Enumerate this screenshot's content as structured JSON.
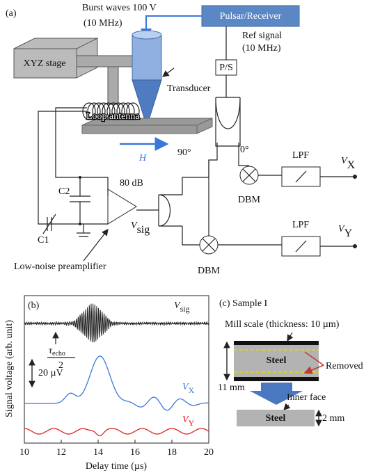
{
  "panel_a": {
    "label": "(a)",
    "burst": "Burst waves 100 V",
    "burst_freq": "(10 MHz)",
    "pulser": "Pulsar/Receiver",
    "ref": "Ref signal",
    "ref_freq": "(10 MHz)",
    "ps": "P/S",
    "stage": "XYZ stage",
    "transducer": "Transducer",
    "antenna": "Loop antenna",
    "field": "H",
    "phase_90": "90°",
    "phase_0": "0°",
    "gain": "80 dB",
    "c1": "C1",
    "c2": "C2",
    "preamp": "Low-noise preamplifier",
    "dbm_x": "DBM",
    "dbm_y": "DBM",
    "lpf_x": "LPF",
    "lpf_y": "LPF",
    "vsig": {
      "main": "V",
      "sub": "sig"
    },
    "vx": {
      "main": "V",
      "sub": "X"
    },
    "vy": {
      "main": "V",
      "sub": "Y"
    }
  },
  "panel_b": {
    "label": "(b)",
    "x_label": "Delay time (µs)",
    "y_label": "Signal voltage (arb. unit)",
    "xlim": [
      10,
      20
    ],
    "xticks": [
      10,
      12,
      14,
      16,
      18,
      20
    ],
    "scale_bar": "20 µV",
    "echo": {
      "main": "τ",
      "sub": "echo",
      "denominator": "2"
    },
    "traces": [
      {
        "name": {
          "main": "V",
          "sub": "sig"
        },
        "color": "#222222"
      },
      {
        "name": {
          "main": "V",
          "sub": "X"
        },
        "color": "#3a78d8"
      },
      {
        "name": {
          "main": "V",
          "sub": "Y"
        },
        "color": "#e02020"
      }
    ]
  },
  "panel_c": {
    "label": "(c) Sample I",
    "mill_scale": "Mill scale (thickness: 10 µm)",
    "steel_top": "Steel",
    "removed": "Removed",
    "thickness": "11 mm",
    "inner_face": "Inner face",
    "steel_bottom": "Steel",
    "thin": "2 mm"
  }
}
